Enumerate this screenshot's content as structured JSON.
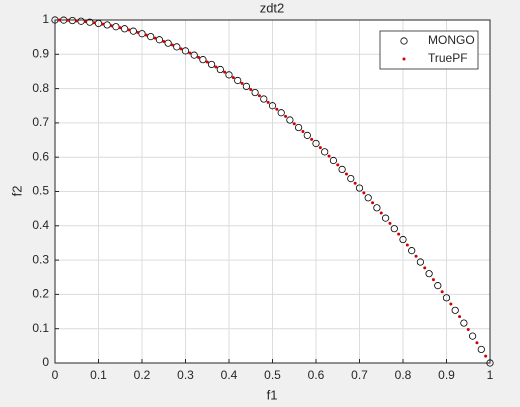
{
  "chart_data": {
    "type": "scatter",
    "title": "zdt2",
    "xlabel": "f1",
    "ylabel": "f2",
    "xlim": [
      0,
      1
    ],
    "ylim": [
      0,
      1
    ],
    "xticks": [
      0,
      0.1,
      0.2,
      0.3,
      0.4,
      0.5,
      0.6,
      0.7,
      0.8,
      0.9,
      1
    ],
    "yticks": [
      0,
      0.1,
      0.2,
      0.3,
      0.4,
      0.5,
      0.6,
      0.7,
      0.8,
      0.9,
      1
    ],
    "grid": true,
    "legend": "top-right",
    "series": [
      {
        "name": "MONGO",
        "color": "#000000",
        "marker": "circle",
        "x": [
          0,
          0.02,
          0.04,
          0.06,
          0.08,
          0.1,
          0.12,
          0.14,
          0.16,
          0.18,
          0.2,
          0.22,
          0.24,
          0.26,
          0.28,
          0.3,
          0.32,
          0.34,
          0.36,
          0.38,
          0.4,
          0.42,
          0.44,
          0.46,
          0.48,
          0.5,
          0.52,
          0.54,
          0.56,
          0.58,
          0.6,
          0.62,
          0.64,
          0.66,
          0.68,
          0.7,
          0.72,
          0.74,
          0.76,
          0.78,
          0.8,
          0.82,
          0.84,
          0.86,
          0.88,
          0.9,
          0.92,
          0.94,
          0.96,
          0.98,
          1
        ],
        "values": [
          1,
          0.9996,
          0.9984,
          0.9964,
          0.9936,
          0.99,
          0.9856,
          0.9804,
          0.9744,
          0.9676,
          0.96,
          0.9516,
          0.9424,
          0.9324,
          0.9216,
          0.91,
          0.8976,
          0.8844,
          0.8704,
          0.8556,
          0.84,
          0.8236,
          0.8064,
          0.7884,
          0.7696,
          0.75,
          0.7296,
          0.7084,
          0.6864,
          0.6636,
          0.64,
          0.6156,
          0.5904,
          0.5644,
          0.5376,
          0.51,
          0.4816,
          0.4524,
          0.4224,
          0.3916,
          0.36,
          0.3276,
          0.2944,
          0.2604,
          0.2256,
          0.19,
          0.1536,
          0.1164,
          0.0784,
          0.0396,
          0
        ]
      },
      {
        "name": "TruePF",
        "color": "#d40000",
        "marker": "dot",
        "x": [
          0.01,
          0.03,
          0.05,
          0.07,
          0.09,
          0.11,
          0.13,
          0.15,
          0.17,
          0.19,
          0.21,
          0.23,
          0.25,
          0.27,
          0.29,
          0.31,
          0.33,
          0.35,
          0.37,
          0.39,
          0.41,
          0.43,
          0.45,
          0.47,
          0.49,
          0.51,
          0.53,
          0.55,
          0.57,
          0.59,
          0.61,
          0.63,
          0.65,
          0.67,
          0.69,
          0.71,
          0.73,
          0.75,
          0.77,
          0.79,
          0.81,
          0.83,
          0.85,
          0.87,
          0.89,
          0.91,
          0.93,
          0.95,
          0.97,
          0.99
        ],
        "values": [
          0.9999,
          0.9991,
          0.9975,
          0.9951,
          0.9919,
          0.9879,
          0.9831,
          0.9775,
          0.9711,
          0.9639,
          0.9559,
          0.9471,
          0.9375,
          0.9271,
          0.9159,
          0.9039,
          0.8911,
          0.8775,
          0.8631,
          0.8479,
          0.8319,
          0.8151,
          0.7975,
          0.7791,
          0.7599,
          0.7399,
          0.7191,
          0.6975,
          0.6751,
          0.6519,
          0.6279,
          0.6031,
          0.5775,
          0.5511,
          0.5239,
          0.4959,
          0.4671,
          0.4375,
          0.4071,
          0.3759,
          0.3439,
          0.3111,
          0.2775,
          0.2431,
          0.2079,
          0.1719,
          0.1351,
          0.0975,
          0.0591,
          0.0199
        ]
      }
    ]
  }
}
